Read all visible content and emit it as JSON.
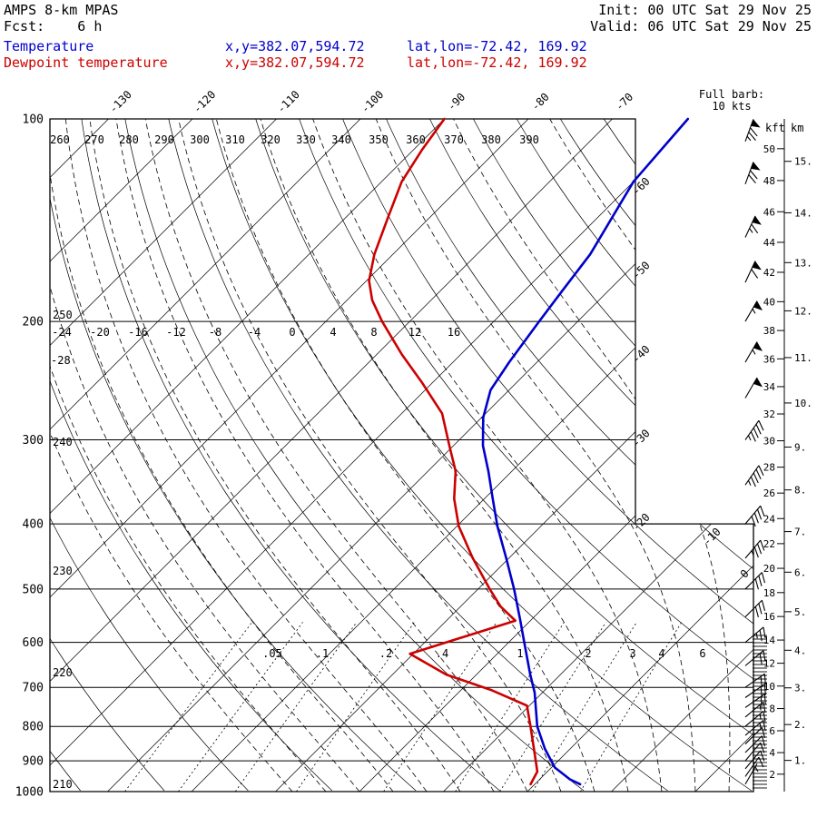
{
  "header": {
    "model": "AMPS 8-km MPAS",
    "fcst": "Fcst:    6 h",
    "init": "Init: 00 UTC Sat 29 Nov 25",
    "valid": "Valid: 06 UTC Sat 29 Nov 25",
    "temperature_label": "Temperature",
    "dewpoint_label": "Dewpoint temperature",
    "temp_xy": "x,y=382.07,594.72",
    "temp_latlon": "lat,lon=-72.42, 169.92",
    "dew_xy": "x,y=382.07,594.72",
    "dew_latlon": "lat,lon=-72.42, 169.92"
  },
  "legend": {
    "full_barb_line1": "Full barb:",
    "full_barb_line2": "10 kts"
  },
  "colors": {
    "temperature": "#0000cc",
    "dewpoint": "#cc0000",
    "grid": "#000000",
    "background": "#ffffff"
  },
  "chart_data": {
    "type": "skewt-log-p",
    "pressure_ticks_hpa": [
      100,
      200,
      300,
      400,
      500,
      600,
      700,
      800,
      900,
      1000
    ],
    "isotherm_top_labels_c": [
      -130,
      -120,
      -110,
      -100,
      -90,
      -80,
      -70
    ],
    "isotherm_right_labels_c": [
      -60,
      -50,
      -40,
      -30,
      -20
    ],
    "isotherm_lower_labels_c": [
      -10,
      0
    ],
    "dry_adiabat_top_labels_k": [
      260,
      270,
      280,
      290,
      300,
      310,
      320,
      330,
      340,
      350,
      360,
      370,
      380,
      390
    ],
    "dry_adiabat_left_labels_k": [
      250,
      240,
      230,
      220,
      210
    ],
    "moist_adiabat_labels_c": [
      -28,
      -24,
      -20,
      -16,
      -12,
      -8,
      -4,
      0,
      4,
      8,
      12,
      16
    ],
    "mixing_ratio_labels_gkg": [
      ".05",
      ".1",
      ".2",
      ".4",
      "1",
      "2",
      "3",
      "4",
      "6"
    ],
    "height_axis": {
      "kft_label": "kft",
      "km_label": "km",
      "kft_ticks": [
        50,
        48,
        46,
        44,
        42,
        40,
        38,
        36,
        34,
        32,
        30,
        28,
        26,
        24,
        22,
        20,
        18,
        16,
        14,
        12,
        10,
        8,
        6,
        4,
        2
      ],
      "km_ticks": [
        15,
        14,
        13,
        12,
        11,
        10,
        9,
        8,
        7,
        6,
        5,
        4,
        3,
        2,
        1
      ]
    },
    "series": [
      {
        "name": "Temperature",
        "color": "#0000cc",
        "points_p_t": [
          [
            100,
            -61
          ],
          [
            124,
            -60
          ],
          [
            159,
            -56.5
          ],
          [
            180,
            -55.5
          ],
          [
            200,
            -54.6
          ],
          [
            230,
            -53.3
          ],
          [
            253,
            -52.2
          ],
          [
            278,
            -49.8
          ],
          [
            306,
            -46.5
          ],
          [
            334,
            -42.8
          ],
          [
            367,
            -39.0
          ],
          [
            403,
            -35.2
          ],
          [
            449,
            -30.4
          ],
          [
            500,
            -25.7
          ],
          [
            557,
            -21.2
          ],
          [
            608,
            -17.6
          ],
          [
            670,
            -13.6
          ],
          [
            713,
            -10.9
          ],
          [
            800,
            -6.6
          ],
          [
            864,
            -3.0
          ],
          [
            921,
            0.4
          ],
          [
            959,
            3.6
          ],
          [
            975,
            5.4
          ]
        ]
      },
      {
        "name": "Dewpoint temperature",
        "color": "#cc0000",
        "points_p_t": [
          [
            100,
            -90
          ],
          [
            111,
            -89
          ],
          [
            124,
            -87.6
          ],
          [
            140,
            -85.0
          ],
          [
            159,
            -82.2
          ],
          [
            174,
            -79.7
          ],
          [
            186,
            -77.0
          ],
          [
            200,
            -73.3
          ],
          [
            224,
            -67.0
          ],
          [
            246,
            -61.4
          ],
          [
            274,
            -55.2
          ],
          [
            306,
            -50.5
          ],
          [
            334,
            -46.7
          ],
          [
            367,
            -43.6
          ],
          [
            403,
            -39.8
          ],
          [
            449,
            -34.4
          ],
          [
            500,
            -28.6
          ],
          [
            531,
            -25.2
          ],
          [
            557,
            -21.8
          ],
          [
            624,
            -30.4
          ],
          [
            670,
            -23.6
          ],
          [
            707,
            -16.3
          ],
          [
            745,
            -10.3
          ],
          [
            800,
            -7.4
          ],
          [
            875,
            -3.8
          ],
          [
            934,
            -1.2
          ],
          [
            975,
            -0.5
          ]
        ]
      }
    ],
    "wind_barbs": {
      "full_barb_kts": 10,
      "column": [
        [
          975,
          30,
          5
        ],
        [
          950,
          35,
          8
        ],
        [
          925,
          40,
          10
        ],
        [
          900,
          40,
          10
        ],
        [
          875,
          45,
          12
        ],
        [
          850,
          45,
          12
        ],
        [
          825,
          50,
          15
        ],
        [
          800,
          50,
          15
        ],
        [
          775,
          50,
          15
        ],
        [
          750,
          55,
          18
        ],
        [
          725,
          55,
          18
        ],
        [
          700,
          55,
          20
        ],
        [
          650,
          50,
          22
        ],
        [
          600,
          50,
          25
        ],
        [
          550,
          45,
          28
        ],
        [
          500,
          45,
          30
        ],
        [
          450,
          40,
          35
        ],
        [
          400,
          40,
          40
        ],
        [
          350,
          35,
          45
        ],
        [
          300,
          35,
          45
        ],
        [
          260,
          30,
          50
        ],
        [
          230,
          30,
          55
        ],
        [
          200,
          30,
          55
        ],
        [
          175,
          25,
          60
        ],
        [
          150,
          25,
          65
        ],
        [
          125,
          20,
          70
        ],
        [
          108,
          20,
          75
        ]
      ]
    }
  }
}
